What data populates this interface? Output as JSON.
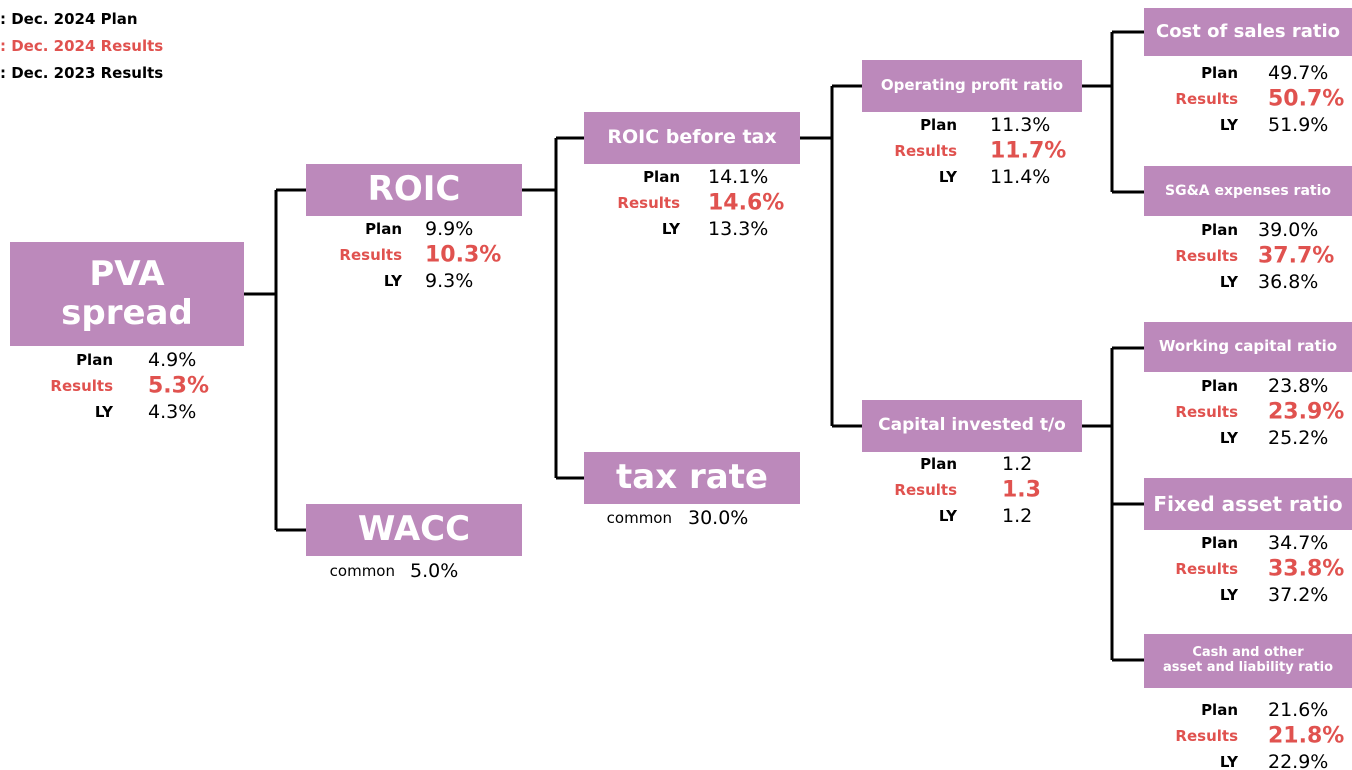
{
  "legend": [
    ": Dec. 2024 Plan",
    ": Dec. 2024 Results",
    ": Dec. 2023 Results"
  ],
  "nodes": [
    {
      "title": [
        "PVA",
        "spread"
      ],
      "rows": [
        {
          "label": "Plan",
          "value": "4.9%"
        },
        {
          "label": "Results",
          "value": "5.3%"
        },
        {
          "label": "LY",
          "value": "4.3%"
        }
      ]
    },
    {
      "title": [
        "ROIC"
      ],
      "rows": [
        {
          "label": "Plan",
          "value": "9.9%"
        },
        {
          "label": "Results",
          "value": "10.3%"
        },
        {
          "label": "LY",
          "value": "9.3%"
        }
      ]
    },
    {
      "title": [
        "WACC"
      ],
      "rows": [
        {
          "label": "common",
          "value": "5.0%"
        }
      ]
    },
    {
      "title": [
        "ROIC before tax"
      ],
      "rows": [
        {
          "label": "Plan",
          "value": "14.1%"
        },
        {
          "label": "Results",
          "value": "14.6%"
        },
        {
          "label": "LY",
          "value": "13.3%"
        }
      ]
    },
    {
      "title": [
        "tax rate"
      ],
      "rows": [
        {
          "label": "common",
          "value": "30.0%"
        }
      ]
    },
    {
      "title": [
        "Operating profit ratio"
      ],
      "rows": [
        {
          "label": "Plan",
          "value": "11.3%"
        },
        {
          "label": "Results",
          "value": "11.7%"
        },
        {
          "label": "LY",
          "value": "11.4%"
        }
      ]
    },
    {
      "title": [
        "Capital invested t/o"
      ],
      "rows": [
        {
          "label": "Plan",
          "value": "1.2"
        },
        {
          "label": "Results",
          "value": "1.3"
        },
        {
          "label": "LY",
          "value": "1.2"
        }
      ]
    },
    {
      "title": [
        "Cost of sales ratio"
      ],
      "rows": [
        {
          "label": "Plan",
          "value": "49.7%"
        },
        {
          "label": "Results",
          "value": "50.7%"
        },
        {
          "label": "LY",
          "value": "51.9%"
        }
      ]
    },
    {
      "title": [
        "SG&A expenses ratio"
      ],
      "rows": [
        {
          "label": "Plan",
          "value": "39.0%"
        },
        {
          "label": "Results",
          "value": "37.7%"
        },
        {
          "label": "LY",
          "value": "36.8%"
        }
      ]
    },
    {
      "title": [
        "Working capital ratio"
      ],
      "rows": [
        {
          "label": "Plan",
          "value": "23.8%"
        },
        {
          "label": "Results",
          "value": "23.9%"
        },
        {
          "label": "LY",
          "value": "25.2%"
        }
      ]
    },
    {
      "title": [
        "Fixed asset ratio"
      ],
      "rows": [
        {
          "label": "Plan",
          "value": "34.7%"
        },
        {
          "label": "Results",
          "value": "33.8%"
        },
        {
          "label": "LY",
          "value": "37.2%"
        }
      ]
    },
    {
      "title": [
        "Cash and other",
        "asset and liability ratio"
      ],
      "rows": [
        {
          "label": "Plan",
          "value": "21.6%"
        },
        {
          "label": "Results",
          "value": "21.8%"
        },
        {
          "label": "LY",
          "value": "22.9%"
        }
      ]
    }
  ]
}
